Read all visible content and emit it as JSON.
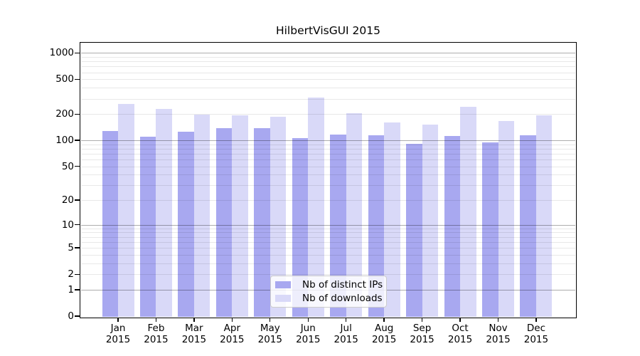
{
  "title": "HilbertVisGUI 2015",
  "colors": {
    "background": "#ffffff",
    "bar_distinct_ips": "#a8a8f0",
    "bar_downloads": "#d9d9f8",
    "axis": "#000000",
    "grid_major": "rgba(0,0,0,0.32)",
    "grid_minor": "rgba(0,0,0,0.09)",
    "legend_border": "#cccccc",
    "legend_background": "rgba(255,255,255,0.8)"
  },
  "legend": {
    "items": [
      {
        "label": "Nb of distinct IPs",
        "color_key": "bar_distinct_ips"
      },
      {
        "label": "Nb of downloads",
        "color_key": "bar_downloads"
      }
    ],
    "position": "lower center"
  },
  "chart_data": {
    "type": "bar",
    "title": "HilbertVisGUI 2015",
    "categories": [
      "Jan 2015",
      "Feb 2015",
      "Mar 2015",
      "Apr 2015",
      "May 2015",
      "Jun 2015",
      "Jul 2015",
      "Aug 2015",
      "Sep 2015",
      "Oct 2015",
      "Nov 2015",
      "Dec 2015"
    ],
    "series": [
      {
        "name": "Nb of distinct IPs",
        "values": [
          128,
          110,
          125,
          138,
          139,
          106,
          117,
          114,
          92,
          113,
          95,
          115
        ]
      },
      {
        "name": "Nb of downloads",
        "values": [
          260,
          228,
          199,
          194,
          187,
          308,
          203,
          160,
          151,
          242,
          166,
          192
        ]
      }
    ],
    "xlabel": "",
    "ylabel": "",
    "y_ticks": [
      0,
      1,
      2,
      5,
      10,
      20,
      50,
      100,
      200,
      500,
      1000
    ],
    "y_scale": "log1p",
    "ylim": [
      0,
      1300
    ],
    "grid": "both",
    "legend_position": "lower center"
  }
}
